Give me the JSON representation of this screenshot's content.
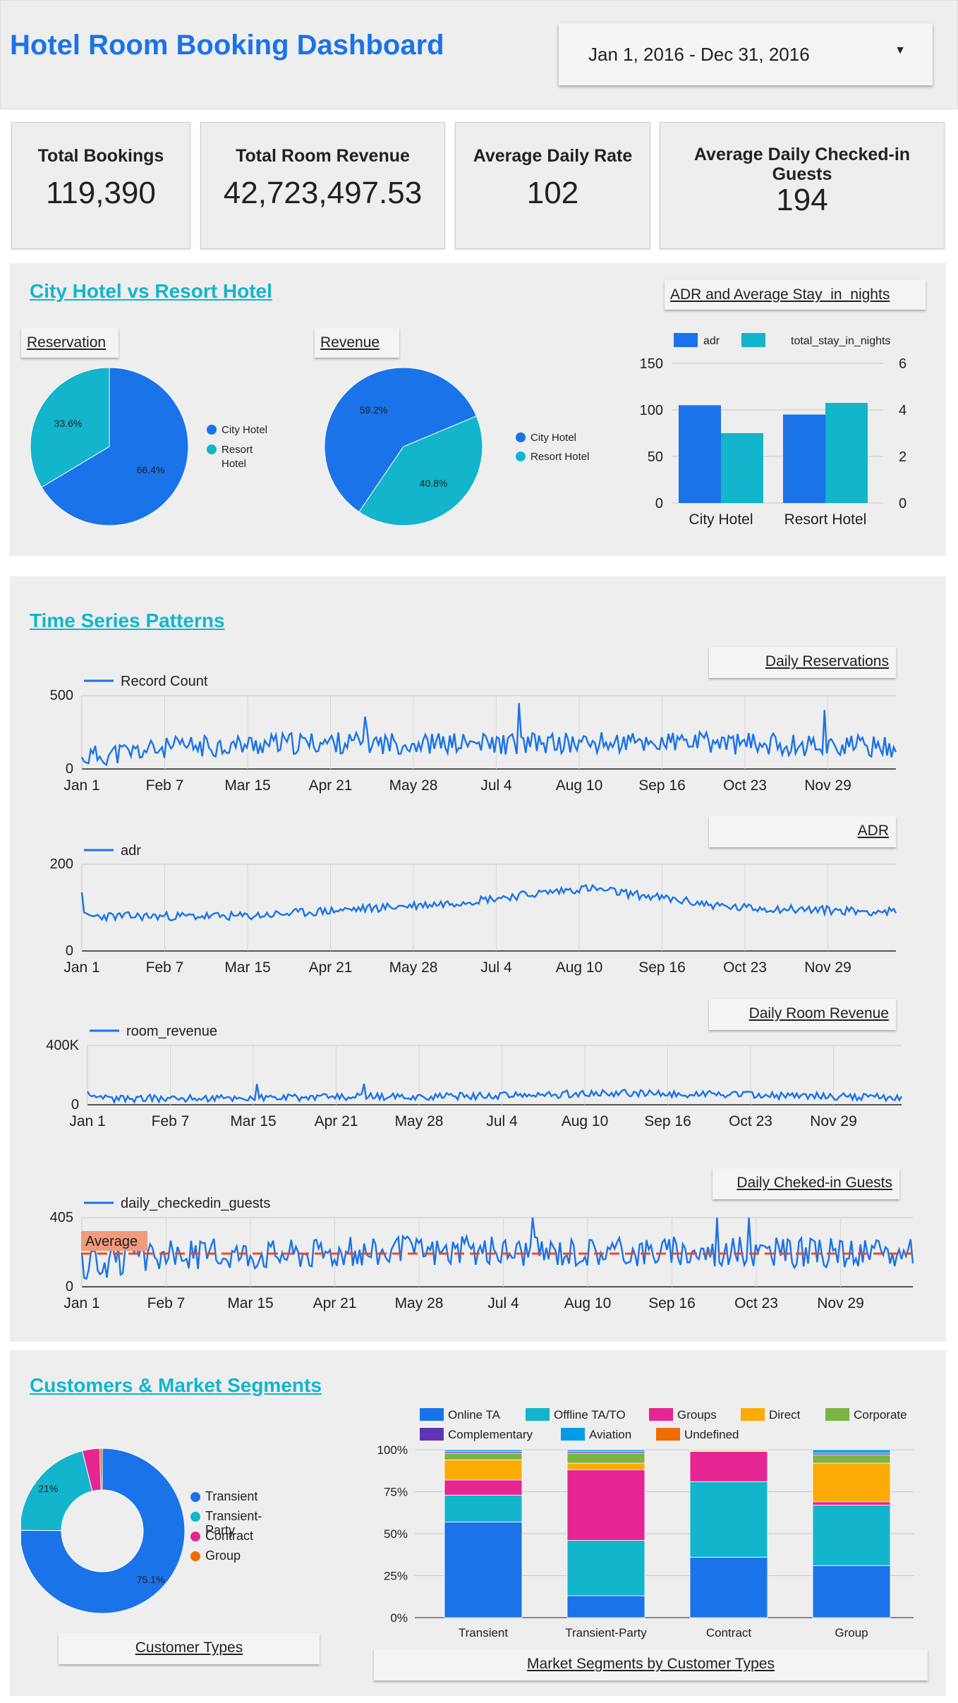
{
  "header": {
    "title": "Hotel Room Booking Dashboard",
    "date_range": "Jan 1, 2016 - Dec 31, 2016",
    "date_caret_icon": "dropdown-caret-icon"
  },
  "kpis": [
    {
      "label": "Total Bookings",
      "value": "119,390"
    },
    {
      "label": "Total Room Revenue",
      "value": "42,723,497.53"
    },
    {
      "label": "Average Daily Rate",
      "value": "102"
    },
    {
      "label": "Average Daily Checked-in Guests",
      "value": "194"
    }
  ],
  "colors": {
    "blue": "#1a73e8",
    "teal": "#12b5cb",
    "pink": "#e52592",
    "orange": "#fbab04",
    "green": "#7cb342",
    "purple": "#5e35b1",
    "sky": "#039be5",
    "dark_orange": "#ef6c00",
    "avg_line": "#e8492b",
    "avg_label_bg": "#f19a7c"
  },
  "sections": {
    "city_vs_resort": "City Hotel vs Resort Hotel",
    "time_series": "Time Series Patterns",
    "customers": "Customers & Market Segments"
  },
  "tags": {
    "reservation": "Reservation",
    "revenue": "Revenue",
    "adr_stay": "ADR and Average Stay_in_nights",
    "daily_reservations": "Daily Reservations",
    "adr": "ADR",
    "daily_room_revenue": "Daily Room Revenue",
    "daily_checked_in": "Daily Cheked-in Guests",
    "customer_types": "Customer Types",
    "market_segments": "Market Segments by Customer Types"
  },
  "chart_data": [
    {
      "type": "pie",
      "categories": [
        "City Hotel",
        "Resort Hotel"
      ],
      "values": [
        66.4,
        33.6
      ],
      "labels": [
        "66.4%",
        "33.6%"
      ],
      "colors": [
        "#1a73e8",
        "#12b5cb"
      ]
    },
    {
      "type": "pie",
      "categories": [
        "City Hotel",
        "Resort Hotel"
      ],
      "values": [
        59.2,
        40.8
      ],
      "labels": [
        "59.2%",
        "40.8%"
      ],
      "colors": [
        "#1a73e8",
        "#12b5cb"
      ]
    },
    {
      "type": "bar",
      "categories": [
        "City Hotel",
        "Resort Hotel"
      ],
      "series": [
        {
          "name": "adr",
          "values": [
            105,
            95
          ],
          "axis": "left"
        },
        {
          "name": "total_stay_in_nights",
          "values": [
            3,
            4.3
          ],
          "axis": "right"
        }
      ],
      "ylim_left": [
        0,
        150
      ],
      "yticks_left": [
        "0",
        "50",
        "100",
        "150"
      ],
      "ylim_right": [
        0,
        6
      ],
      "yticks_right": [
        "0",
        "2",
        "4",
        "6"
      ]
    },
    {
      "type": "line",
      "series": [
        {
          "name": "Record Count"
        }
      ],
      "ylim": [
        0,
        500
      ],
      "yticks": [
        "0",
        "500"
      ],
      "xticks": [
        "Jan 1",
        "Feb 7",
        "Mar 15",
        "Apr 21",
        "May 28",
        "Jul 4",
        "Aug 10",
        "Sep 16",
        "Oct 23",
        "Nov 29"
      ],
      "base": 165,
      "amp": 75,
      "start": 80,
      "trend": [
        [
          0,
          80
        ],
        [
          0.12,
          150
        ],
        [
          0.3,
          180
        ],
        [
          0.5,
          170
        ],
        [
          0.75,
          180
        ],
        [
          1,
          150
        ]
      ]
    },
    {
      "type": "line",
      "series": [
        {
          "name": "adr"
        }
      ],
      "ylim": [
        0,
        200
      ],
      "yticks": [
        "0",
        "200"
      ],
      "xticks": [
        "Jan 1",
        "Feb 7",
        "Mar 15",
        "Apr 21",
        "May 28",
        "Jul 4",
        "Aug 10",
        "Sep 16",
        "Oct 23",
        "Nov 29"
      ],
      "amp": 10,
      "start": 135,
      "trend": [
        [
          0,
          80
        ],
        [
          0.2,
          80
        ],
        [
          0.45,
          110
        ],
        [
          0.62,
          145
        ],
        [
          0.8,
          100
        ],
        [
          1,
          90
        ]
      ]
    },
    {
      "type": "line",
      "series": [
        {
          "name": "room_revenue"
        }
      ],
      "ylim": [
        0,
        400000
      ],
      "yticks": [
        "0",
        "400K"
      ],
      "xticks": [
        "Jan 1",
        "Feb 7",
        "Mar 15",
        "Apr 21",
        "May 28",
        "Jul 4",
        "Aug 10",
        "Sep 16",
        "Oct 23",
        "Nov 29"
      ],
      "amp": 25000,
      "start": 90000,
      "trend": [
        [
          0,
          40000
        ],
        [
          0.5,
          60000
        ],
        [
          0.65,
          80000
        ],
        [
          1,
          50000
        ]
      ]
    },
    {
      "type": "line",
      "series": [
        {
          "name": "daily_checkedin_guests"
        }
      ],
      "ylim": [
        0,
        405
      ],
      "yticks": [
        "0",
        "405"
      ],
      "xticks": [
        "Jan 1",
        "Feb 7",
        "Mar 15",
        "Apr 21",
        "May 28",
        "Jul 4",
        "Aug 10",
        "Sep 16",
        "Oct 23",
        "Nov 29"
      ],
      "reference_line": {
        "label": "Average",
        "value": 194
      },
      "amp": 90,
      "start": 200,
      "trend": [
        [
          0,
          120
        ],
        [
          0.12,
          190
        ],
        [
          0.4,
          210
        ],
        [
          0.7,
          210
        ],
        [
          1,
          190
        ]
      ]
    },
    {
      "type": "pie",
      "categories": [
        "Transient",
        "Transient-Party",
        "Contract",
        "Group"
      ],
      "values": [
        75.1,
        21,
        3.4,
        0.5
      ],
      "labels": [
        "75.1%",
        "21%",
        "",
        ""
      ],
      "colors": [
        "#1a73e8",
        "#12b5cb",
        "#e52592",
        "#ef6c00"
      ],
      "donut": true
    },
    {
      "type": "bar",
      "stacked": true,
      "categories": [
        "Transient",
        "Transient-Party",
        "Contract",
        "Group"
      ],
      "series": [
        {
          "name": "Online TA",
          "values": [
            57,
            13,
            36,
            31
          ]
        },
        {
          "name": "Offline TA/TO",
          "values": [
            16,
            33,
            45,
            36
          ]
        },
        {
          "name": "Groups",
          "values": [
            9,
            42,
            18,
            2
          ]
        },
        {
          "name": "Direct",
          "values": [
            12,
            4,
            0.5,
            23
          ]
        },
        {
          "name": "Corporate",
          "values": [
            4,
            6,
            0.5,
            5
          ]
        },
        {
          "name": "Complementary",
          "values": [
            1,
            1,
            0,
            1
          ]
        },
        {
          "name": "Aviation",
          "values": [
            1,
            1,
            0,
            2
          ]
        },
        {
          "name": "Undefined",
          "values": [
            0,
            0,
            0,
            0
          ]
        }
      ],
      "ylim": [
        0,
        100
      ],
      "yticks": [
        "0%",
        "25%",
        "50%",
        "75%",
        "100%"
      ]
    }
  ]
}
